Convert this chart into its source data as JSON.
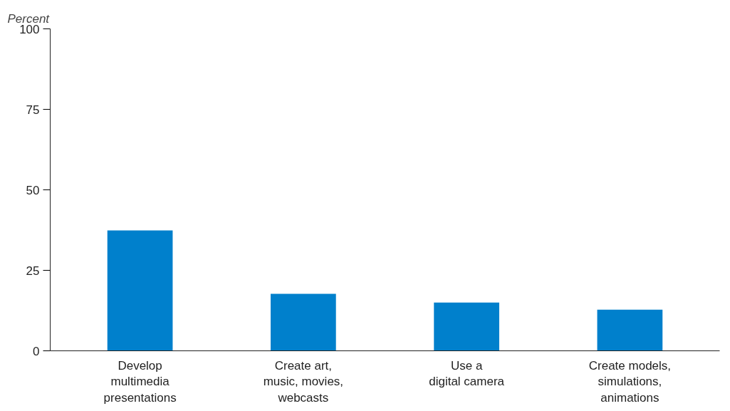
{
  "chart_data": {
    "type": "bar",
    "ylabel": "Percent",
    "categories": [
      "Develop\nmultimedia\npresentations",
      "Create art,\nmusic, movies,\nwebcasts",
      "Use a\ndigital camera",
      "Create models,\nsimulations,\nanimations"
    ],
    "values": [
      37.4,
      17.7,
      15,
      12.8
    ],
    "color": "#0080cc",
    "ylim": [
      0,
      100
    ],
    "yticks": [
      0,
      25,
      50,
      75,
      100
    ],
    "grid": false
  }
}
